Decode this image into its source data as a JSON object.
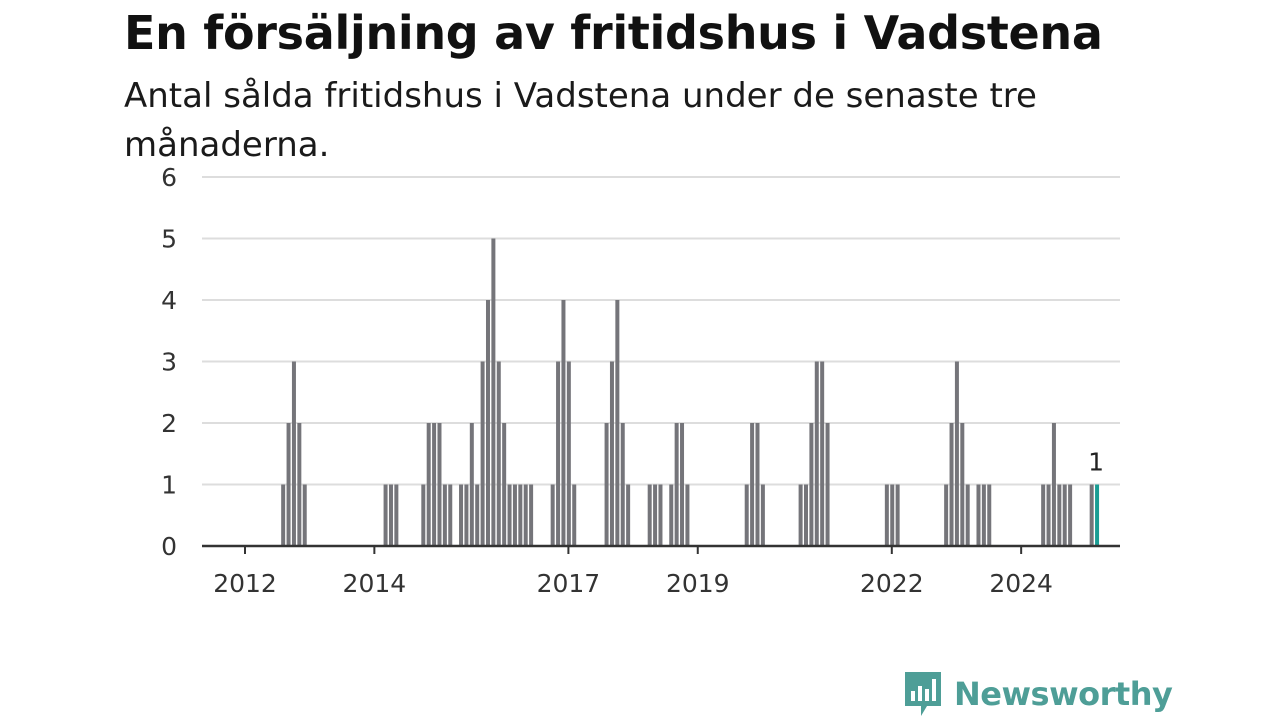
{
  "title": "En försäljning av fritidshus i Vadstena",
  "subtitle": "Antal sålda fritidshus i Vadstena under de senaste tre månaderna.",
  "brand": {
    "name": "Newsworthy",
    "color": "#4e9e97",
    "icon": "newsworthy-logo-icon"
  },
  "colors": {
    "bar": "#75757a",
    "highlight": "#1a9d94",
    "grid": "#dddddd",
    "axis": "#333333"
  },
  "chart_data": {
    "type": "bar",
    "x_unit": "month",
    "ylim": [
      0,
      6
    ],
    "y_ticks": [
      0,
      1,
      2,
      3,
      4,
      5,
      6
    ],
    "x_ticks": [
      "2012",
      "2014",
      "2017",
      "2019",
      "2022",
      "2024"
    ],
    "grid": true,
    "highlight_label": "1",
    "series": [
      {
        "points": [
          [
            "2012-04",
            1
          ],
          [
            "2012-05",
            2
          ],
          [
            "2012-06",
            3
          ],
          [
            "2012-07",
            2
          ],
          [
            "2012-08",
            1
          ],
          [
            "2013-11",
            1
          ],
          [
            "2013-12",
            1
          ],
          [
            "2014-01",
            1
          ],
          [
            "2014-06",
            1
          ],
          [
            "2014-07",
            2
          ],
          [
            "2014-08",
            2
          ],
          [
            "2014-09",
            2
          ],
          [
            "2014-10",
            1
          ],
          [
            "2014-11",
            1
          ],
          [
            "2015-01",
            1
          ],
          [
            "2015-02",
            1
          ],
          [
            "2015-03",
            2
          ],
          [
            "2015-04",
            1
          ],
          [
            "2015-05",
            3
          ],
          [
            "2015-06",
            4
          ],
          [
            "2015-07",
            5
          ],
          [
            "2015-08",
            3
          ],
          [
            "2015-09",
            2
          ],
          [
            "2015-10",
            1
          ],
          [
            "2015-11",
            1
          ],
          [
            "2015-12",
            1
          ],
          [
            "2016-01",
            1
          ],
          [
            "2016-02",
            1
          ],
          [
            "2016-06",
            1
          ],
          [
            "2016-07",
            3
          ],
          [
            "2016-08",
            4
          ],
          [
            "2016-09",
            3
          ],
          [
            "2016-10",
            1
          ],
          [
            "2017-04",
            2
          ],
          [
            "2017-05",
            3
          ],
          [
            "2017-06",
            4
          ],
          [
            "2017-07",
            2
          ],
          [
            "2017-08",
            1
          ],
          [
            "2017-12",
            1
          ],
          [
            "2018-01",
            1
          ],
          [
            "2018-02",
            1
          ],
          [
            "2018-04",
            1
          ],
          [
            "2018-05",
            2
          ],
          [
            "2018-06",
            2
          ],
          [
            "2018-07",
            1
          ],
          [
            "2019-06",
            1
          ],
          [
            "2019-07",
            2
          ],
          [
            "2019-08",
            2
          ],
          [
            "2019-09",
            1
          ],
          [
            "2020-04",
            1
          ],
          [
            "2020-05",
            1
          ],
          [
            "2020-06",
            2
          ],
          [
            "2020-07",
            3
          ],
          [
            "2020-08",
            3
          ],
          [
            "2020-09",
            2
          ],
          [
            "2021-08",
            1
          ],
          [
            "2021-09",
            1
          ],
          [
            "2021-10",
            1
          ],
          [
            "2022-07",
            1
          ],
          [
            "2022-08",
            2
          ],
          [
            "2022-09",
            3
          ],
          [
            "2022-10",
            2
          ],
          [
            "2022-11",
            1
          ],
          [
            "2023-01",
            1
          ],
          [
            "2023-02",
            1
          ],
          [
            "2023-03",
            1
          ],
          [
            "2024-01",
            1
          ],
          [
            "2024-02",
            1
          ],
          [
            "2024-03",
            2
          ],
          [
            "2024-04",
            1
          ],
          [
            "2024-05",
            1
          ],
          [
            "2024-06",
            1
          ],
          [
            "2024-10",
            1
          ],
          [
            "2024-11",
            1
          ]
        ]
      }
    ]
  }
}
